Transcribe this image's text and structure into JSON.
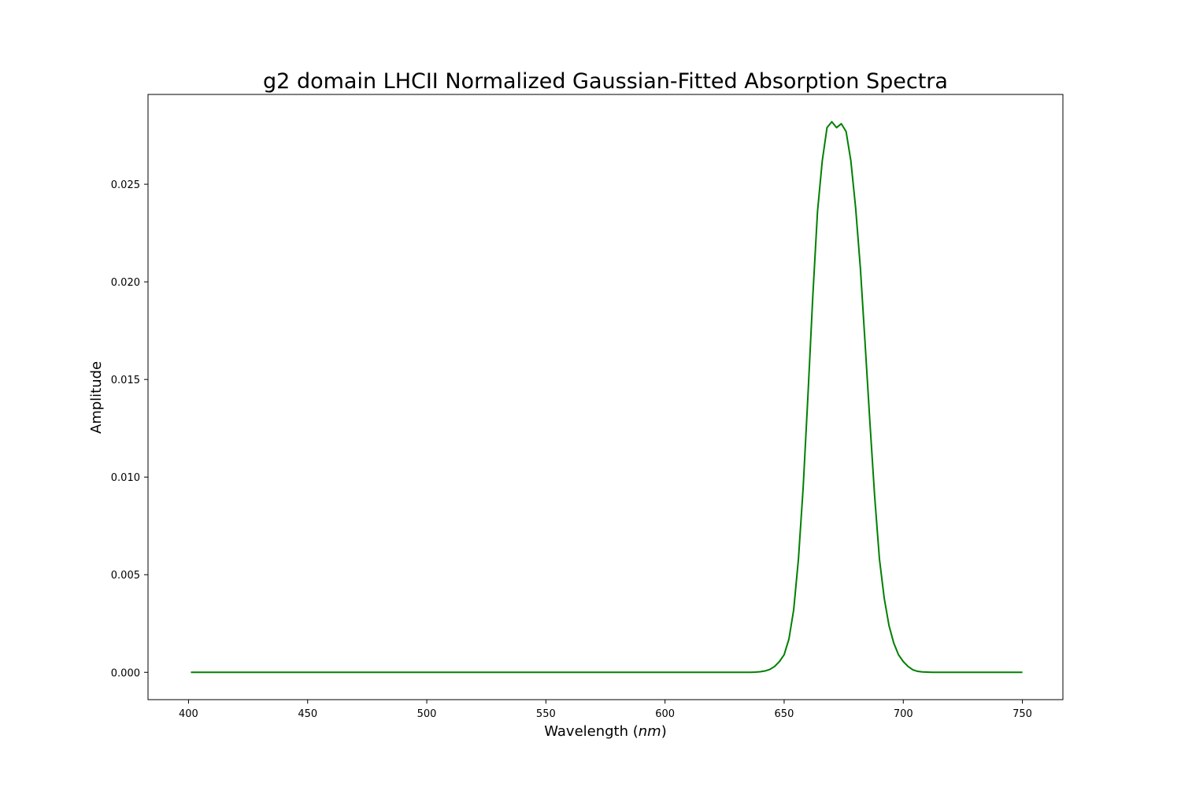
{
  "chart_data": {
    "type": "line",
    "title": "g2 domain LHCII Normalized Gaussian-Fitted Absorption Spectra",
    "xlabel": "Wavelength (",
    "xlabel_unit": "nm",
    "xlabel_close": ")",
    "ylabel": "Amplitude",
    "xlim": [
      383,
      767
    ],
    "ylim": [
      -0.0014,
      0.0296
    ],
    "xticks": [
      400,
      450,
      500,
      550,
      600,
      650,
      700,
      750
    ],
    "yticks": [
      0.0,
      0.005,
      0.01,
      0.015,
      0.02,
      0.025
    ],
    "ytick_labels": [
      "0.000",
      "0.005",
      "0.010",
      "0.015",
      "0.020",
      "0.025"
    ],
    "grid": false,
    "series": [
      {
        "color": "#008000",
        "x": [
          401,
          500,
          600,
          636,
          638,
          640,
          642,
          644,
          646,
          648,
          650,
          652,
          654,
          656,
          658,
          660,
          662,
          664,
          666,
          668,
          670,
          672,
          674,
          676,
          678,
          680,
          682,
          684,
          686,
          688,
          690,
          692,
          694,
          696,
          698,
          700,
          702,
          704,
          706,
          708,
          710,
          712,
          714,
          720,
          750
        ],
        "y": [
          0,
          0,
          0,
          0,
          1e-05,
          3e-05,
          7e-05,
          0.00015,
          0.0003,
          0.00055,
          0.0009,
          0.0017,
          0.0032,
          0.0058,
          0.0095,
          0.0142,
          0.0192,
          0.0236,
          0.0262,
          0.0279,
          0.0282,
          0.0279,
          0.0281,
          0.0277,
          0.0262,
          0.0238,
          0.0207,
          0.0168,
          0.0128,
          0.009,
          0.0058,
          0.0038,
          0.0024,
          0.0015,
          0.0009,
          0.00055,
          0.0003,
          0.00013,
          5e-05,
          2e-05,
          1e-05,
          0,
          0,
          0,
          0
        ]
      }
    ]
  }
}
